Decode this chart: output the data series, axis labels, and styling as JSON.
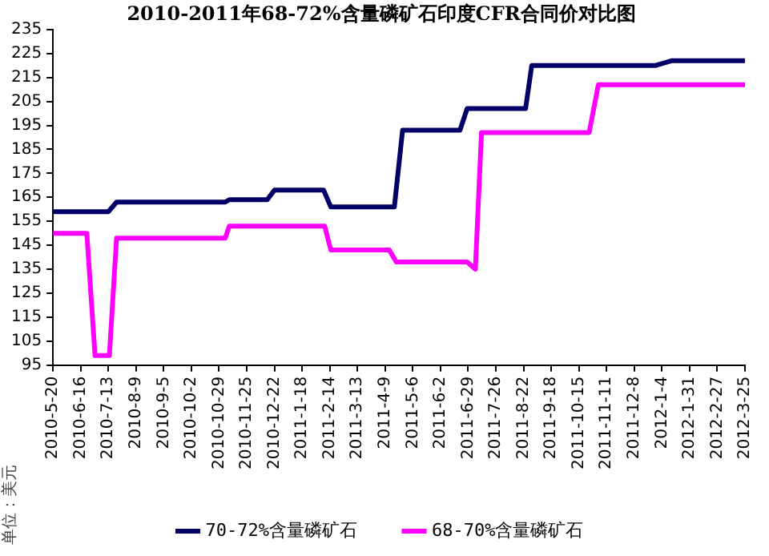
{
  "chart_data": {
    "type": "line",
    "title": "2010-2011年68-72%含量磷矿石印度CFR合同价对比图",
    "ylabel": "单位：美元",
    "xlim": [
      "2010-05-20",
      "2012-03-25"
    ],
    "xticks": [
      {
        "value": "2010-05-20",
        "label": "2010-5-20"
      },
      {
        "value": "2010-06-16",
        "label": "2010-6-16"
      },
      {
        "value": "2010-07-13",
        "label": "2010-7-13"
      },
      {
        "value": "2010-08-09",
        "label": "2010-8-9"
      },
      {
        "value": "2010-09-05",
        "label": "2010-9-5"
      },
      {
        "value": "2010-10-02",
        "label": "2010-10-2"
      },
      {
        "value": "2010-10-29",
        "label": "2010-10-29"
      },
      {
        "value": "2010-11-25",
        "label": "2010-11-25"
      },
      {
        "value": "2010-12-22",
        "label": "2010-12-22"
      },
      {
        "value": "2011-01-18",
        "label": "2011-1-18"
      },
      {
        "value": "2011-02-14",
        "label": "2011-2-14"
      },
      {
        "value": "2011-03-13",
        "label": "2011-3-13"
      },
      {
        "value": "2011-04-09",
        "label": "2011-4-9"
      },
      {
        "value": "2011-05-06",
        "label": "2011-5-6"
      },
      {
        "value": "2011-06-02",
        "label": "2011-6-2"
      },
      {
        "value": "2011-06-29",
        "label": "2011-6-29"
      },
      {
        "value": "2011-07-26",
        "label": "2011-7-26"
      },
      {
        "value": "2011-08-22",
        "label": "2011-8-22"
      },
      {
        "value": "2011-09-18",
        "label": "2011-9-18"
      },
      {
        "value": "2011-10-15",
        "label": "2011-10-15"
      },
      {
        "value": "2011-11-11",
        "label": "2011-11-11"
      },
      {
        "value": "2011-12-08",
        "label": "2011-12-8"
      },
      {
        "value": "2012-01-04",
        "label": "2012-1-4"
      },
      {
        "value": "2012-01-31",
        "label": "2012-1-31"
      },
      {
        "value": "2012-02-27",
        "label": "2012-2-27"
      },
      {
        "value": "2012-03-25",
        "label": "2012-3-25"
      }
    ],
    "ylim": [
      95,
      235
    ],
    "yticks": [
      95,
      105,
      115,
      125,
      135,
      145,
      155,
      165,
      175,
      185,
      195,
      205,
      215,
      225,
      235
    ],
    "grid": false,
    "legend": "bottom",
    "marker": "none",
    "line_style": "solid",
    "series": [
      {
        "name": "70-72%含量磷矿石",
        "color": "#000066",
        "x": [
          "2010-05-20",
          "2010-07-13",
          "2010-07-21",
          "2010-11-04",
          "2010-11-08",
          "2010-12-15",
          "2010-12-22",
          "2011-02-08",
          "2011-02-15",
          "2011-04-18",
          "2011-04-26",
          "2011-06-21",
          "2011-06-28",
          "2011-08-24",
          "2011-08-30",
          "2011-12-29",
          "2012-01-14",
          "2012-03-25"
        ],
        "values": [
          159,
          159,
          163,
          163,
          164,
          164,
          168,
          168,
          161,
          161,
          193,
          193,
          202,
          202,
          220,
          220,
          222,
          222
        ]
      },
      {
        "name": "68-70%含量磷矿石",
        "color": "#ff00ff",
        "x": [
          "2010-05-20",
          "2010-06-22",
          "2010-06-30",
          "2010-07-14",
          "2010-07-21",
          "2010-11-04",
          "2010-11-08",
          "2011-02-09",
          "2011-02-15",
          "2011-04-13",
          "2011-04-20",
          "2011-06-28",
          "2011-07-06",
          "2011-07-12",
          "2011-10-25",
          "2011-11-03",
          "2012-03-25"
        ],
        "values": [
          150,
          150,
          99,
          99,
          148,
          148,
          153,
          153,
          143,
          143,
          138,
          138,
          135,
          192,
          192,
          212,
          212
        ]
      }
    ]
  }
}
